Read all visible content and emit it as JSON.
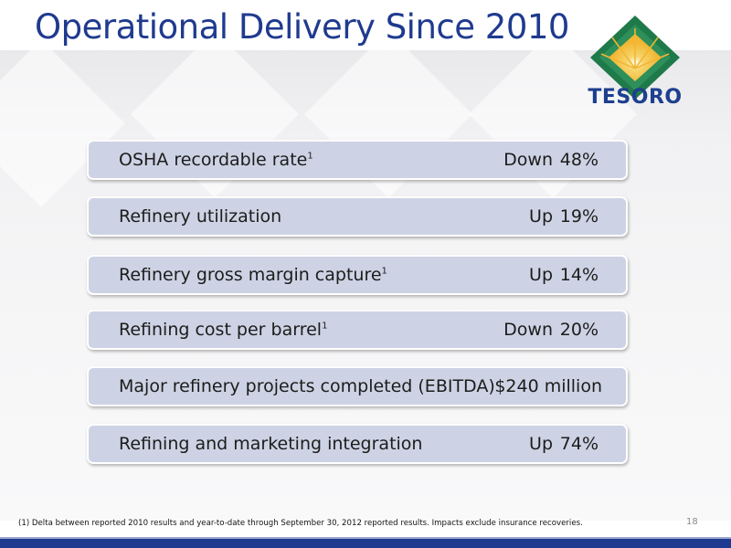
{
  "slide": {
    "title": "Operational Delivery Since 2010",
    "logo_text": "TESORO",
    "page_number": "18",
    "footnote": "(1) Delta between reported 2010 results and year-to-date through September 30, 2012 reported results. Impacts exclude insurance recoveries."
  },
  "metrics": [
    {
      "label": "OSHA recordable rate",
      "sup": "1",
      "direction": "Down",
      "value": "48%"
    },
    {
      "label": "Refinery utilization",
      "sup": "",
      "direction": "Up",
      "value": "19%"
    },
    {
      "label": "Refinery gross margin capture",
      "sup": "1",
      "direction": "Up",
      "value": "14%"
    },
    {
      "label": "Refining cost per barrel",
      "sup": "1",
      "direction": "Down",
      "value": "20%"
    },
    {
      "label": "Major refinery projects completed  (EBITDA)",
      "sup": "",
      "direction": "",
      "value": "$240 million"
    },
    {
      "label": "Refining and marketing integration",
      "sup": "",
      "direction": "Up",
      "value": "74%"
    }
  ],
  "colors": {
    "title": "#1f3a8f",
    "box_fill": "#cdd3e4",
    "logo_blue": "#1d3f8e",
    "logo_green": "#1f7a4a",
    "logo_gold": "#f2b632",
    "bottom_bar": "#1f3a8f"
  }
}
